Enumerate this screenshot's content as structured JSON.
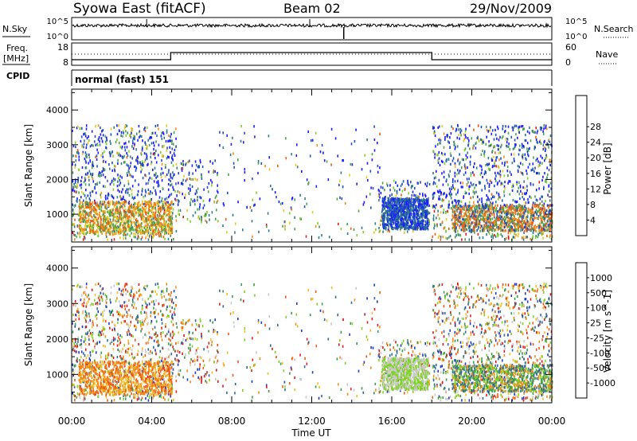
{
  "header": {
    "station": "Syowa East (fitACF)",
    "beam": "Beam 02",
    "date": "29/Nov/2009"
  },
  "nsky_panel": {
    "left_label": "N.Sky",
    "right_label": "N.Search",
    "left_ticks": [
      "10^5",
      "10^0"
    ],
    "right_ticks": [
      "10^5",
      "10^0"
    ]
  },
  "freq_panel": {
    "left_label_line1": "Freq.",
    "left_label_line2": "[MHz]",
    "right_label": "Nave",
    "left_ticks": [
      "18",
      "8"
    ],
    "right_ticks": [
      "60",
      "0"
    ]
  },
  "cpid": {
    "label": "CPID",
    "value": "normal (fast) 151"
  },
  "chart_data": [
    {
      "type": "heatmap",
      "name": "Power",
      "ylabel": "Slant Range [km]",
      "xlabel": "",
      "ylim": [
        200,
        4600
      ],
      "yticks": [
        "1000",
        "2000",
        "3000",
        "4000"
      ],
      "xticks": [
        "00:00",
        "04:00",
        "08:00",
        "12:00",
        "16:00",
        "20:00",
        "00:00"
      ],
      "colorbar": {
        "label": "Power [dB]",
        "ticks": [
          "4",
          "8",
          "12",
          "16",
          "20",
          "24",
          "28"
        ],
        "colors": [
          "#1b1bff",
          "#1f4fbf",
          "#2f7a8c",
          "#4aa34a",
          "#7ed321",
          "#e8c81c",
          "#f08c1a",
          "#ee5a14",
          "#e01a1a"
        ]
      }
    },
    {
      "type": "heatmap",
      "name": "Velocity",
      "ylabel": "Slant Range [km]",
      "xlabel": "Time UT",
      "ylim": [
        200,
        4600
      ],
      "yticks": [
        "1000",
        "2000",
        "3000",
        "4000"
      ],
      "xticks": [
        "00:00",
        "04:00",
        "08:00",
        "12:00",
        "16:00",
        "20:00",
        "00:00"
      ],
      "colorbar": {
        "label": "Velocity [m s^-1]",
        "ticks": [
          "1000",
          "500",
          "100",
          "25",
          "-25",
          "-100",
          "-500",
          "-1000"
        ],
        "colors": [
          "#1f3bbf",
          "#2f6a9a",
          "#3a9a52",
          "#7ed321",
          "#c8c8c8",
          "#f0c020",
          "#f08c1a",
          "#ee5a14",
          "#e01a1a"
        ]
      }
    }
  ]
}
